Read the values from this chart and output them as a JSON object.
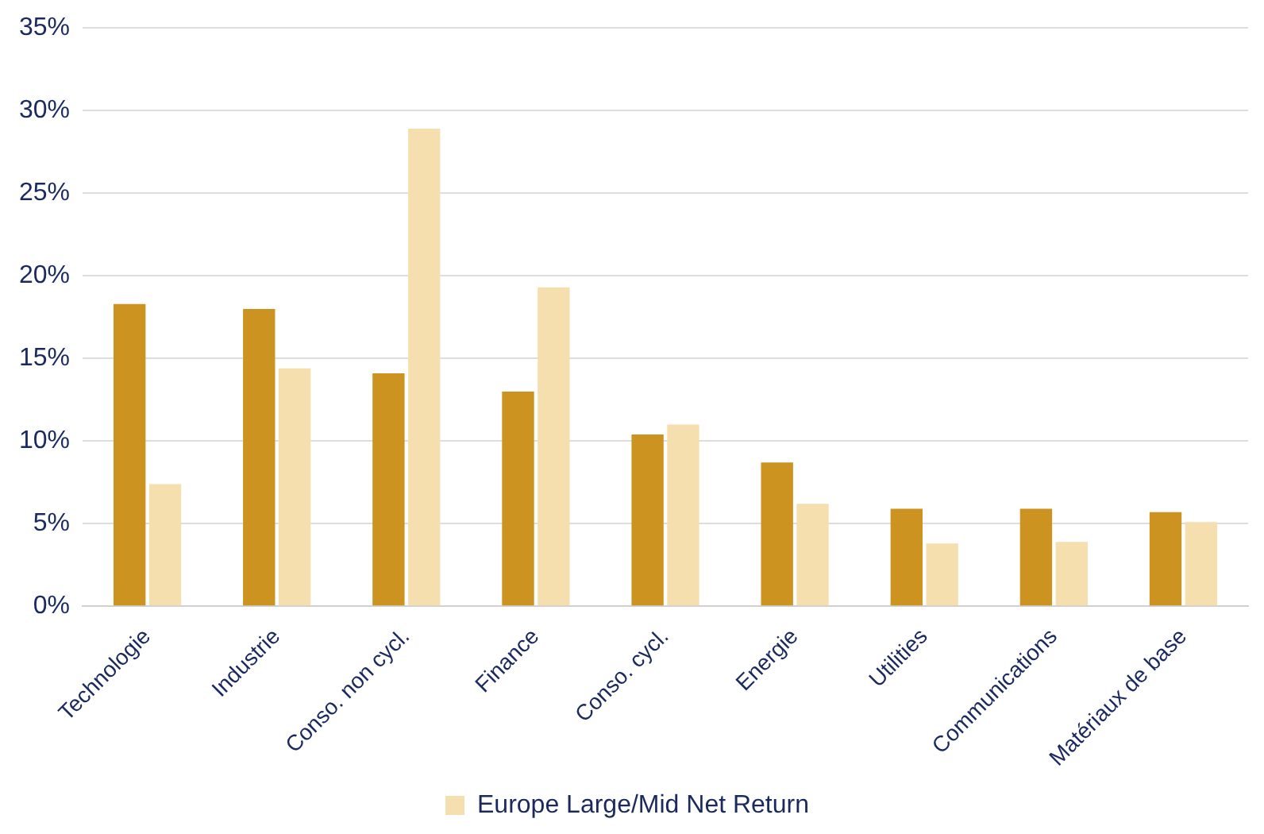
{
  "chart_data": {
    "type": "bar",
    "categories": [
      "Technologie",
      "Industrie",
      "Conso. non cycl.",
      "Finance",
      "Conso. cycl.",
      "Energie",
      "Utilities",
      "Communications",
      "Matériaux de base"
    ],
    "series": [
      {
        "color": "#cc9320",
        "values": [
          18.3,
          18.0,
          14.1,
          13.0,
          10.4,
          8.7,
          5.9,
          5.9,
          5.7
        ]
      },
      {
        "name": "Europe Large/Mid Net Return",
        "color": "#f6dfae",
        "values": [
          7.4,
          14.4,
          28.9,
          19.3,
          11.0,
          6.2,
          3.8,
          3.9,
          5.1
        ]
      }
    ],
    "ylim": [
      0,
      35
    ],
    "yticks": [
      {
        "value": 0,
        "label": "0%"
      },
      {
        "value": 5,
        "label": "5%"
      },
      {
        "value": 10,
        "label": "10%"
      },
      {
        "value": 15,
        "label": "15%"
      },
      {
        "value": 20,
        "label": "20%"
      },
      {
        "value": 25,
        "label": "25%"
      },
      {
        "value": 30,
        "label": "30%"
      },
      {
        "value": 35,
        "label": "35%"
      }
    ],
    "grid": "y",
    "legend": "bottom"
  }
}
